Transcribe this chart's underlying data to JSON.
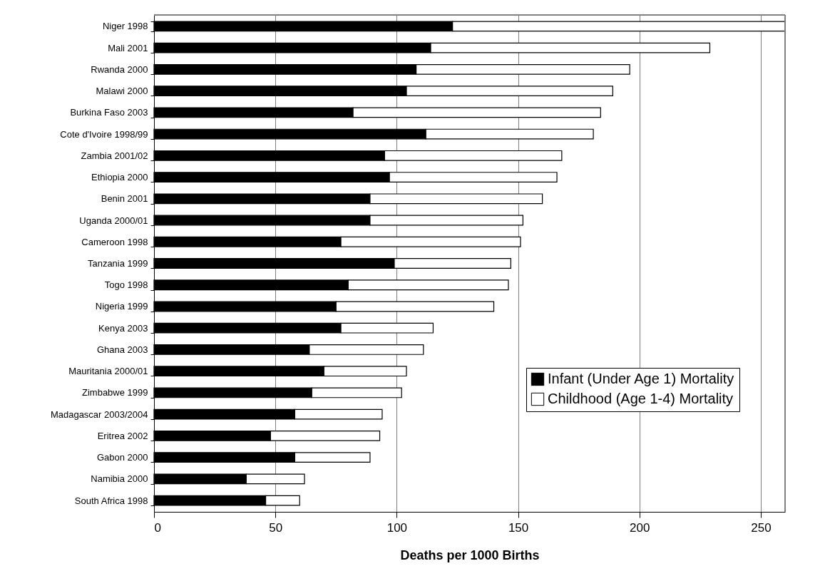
{
  "chart_data": {
    "type": "bar",
    "orientation": "horizontal",
    "stacked": true,
    "xlabel": "Deaths per 1000 Births",
    "categories": [
      "Niger 1998",
      "Mali 2001",
      "Rwanda 2000",
      "Malawi 2000",
      "Burkina Faso 2003",
      "Cote d'Ivoire 1998/99",
      "Zambia 2001/02",
      "Ethiopia 2000",
      "Benin 2001",
      "Uganda 2000/01",
      "Cameroon 1998",
      "Tanzania 1999",
      "Togo 1998",
      "Nigeria 1999",
      "Kenya 2003",
      "Ghana 2003",
      "Mauritania 2000/01",
      "Zimbabwe 1999",
      "Madagascar 2003/2004",
      "Eritrea 2002",
      "Gabon 2000",
      "Namibia 2000",
      "South Africa 1998"
    ],
    "series": [
      {
        "name": "Infant (Under Age 1) Mortality",
        "color": "#000000",
        "values": [
          123,
          114,
          108,
          104,
          82,
          112,
          95,
          97,
          89,
          89,
          77,
          99,
          80,
          75,
          77,
          64,
          70,
          65,
          58,
          48,
          58,
          38,
          46
        ]
      },
      {
        "name": "Childhood (Age 1-4) Mortality",
        "color": "#ffffff",
        "values": [
          137,
          115,
          88,
          85,
          102,
          69,
          73,
          69,
          71,
          63,
          74,
          48,
          66,
          65,
          38,
          47,
          34,
          37,
          36,
          45,
          31,
          24,
          14
        ]
      }
    ],
    "xlim": [
      0,
      260
    ],
    "xticks": [
      0,
      50,
      100,
      150,
      200,
      250
    ],
    "grid": "x",
    "legend": "right"
  }
}
